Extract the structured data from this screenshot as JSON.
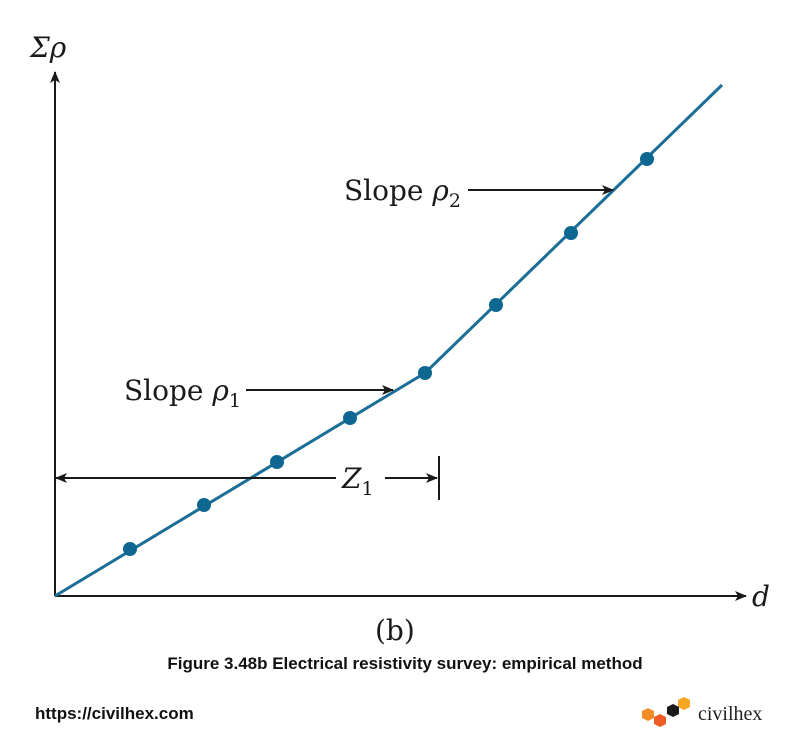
{
  "diagram": {
    "y_axis_label": "Σρ",
    "x_axis_label": "d",
    "slope1": {
      "text": "Slope ",
      "symbol": "ρ",
      "sub": "1"
    },
    "slope2": {
      "text": "Slope ",
      "symbol": "ρ",
      "sub": "2"
    },
    "z_label": {
      "symbol": "Z",
      "sub": "1"
    },
    "panel_label": "(b)",
    "colors": {
      "line": "#1b6e96",
      "point": "#0d6790",
      "ink": "#1a1a1a"
    }
  },
  "caption": "Figure 3.48b Electrical resistivity survey: empirical method",
  "footer": {
    "url": "https://civilhex.com",
    "brand": "civilhex",
    "logo_icon": "hexagon-cluster-icon",
    "logo_colors": [
      "#f28c28",
      "#ef5b25",
      "#f5a623",
      "#1a1a1a"
    ]
  }
}
